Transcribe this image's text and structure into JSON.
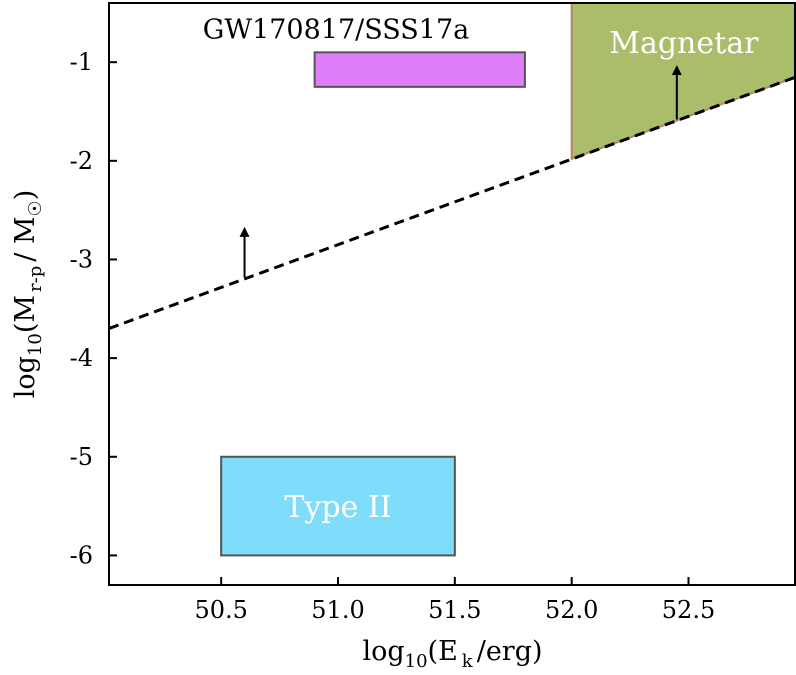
{
  "chart_data": {
    "type": "area",
    "xlabel": {
      "base": "log",
      "sub": "10",
      "open": "(E",
      "sym_sub": "k",
      "close": "/erg)"
    },
    "ylabel": {
      "base": "log",
      "sub": "10",
      "open": "(M",
      "sym_sub": "r-p",
      "mid": "/ M",
      "sun_sub": "☉",
      "close": ")"
    },
    "xlim": [
      50.02,
      52.96
    ],
    "ylim": [
      -6.3,
      -0.4
    ],
    "xticks": [
      {
        "value": 50.5,
        "label": "50.5"
      },
      {
        "value": 51.0,
        "label": "51.0"
      },
      {
        "value": 51.5,
        "label": "51.5"
      },
      {
        "value": 52.0,
        "label": "52.0"
      },
      {
        "value": 52.5,
        "label": "52.5"
      }
    ],
    "yticks": [
      {
        "value": -1,
        "label": "-1"
      },
      {
        "value": -2,
        "label": "-2"
      },
      {
        "value": -3,
        "label": "-3"
      },
      {
        "value": -4,
        "label": "-4"
      },
      {
        "value": -5,
        "label": "-5"
      },
      {
        "value": -6,
        "label": "-6"
      }
    ],
    "limit_line": {
      "x": [
        50.02,
        52.96
      ],
      "y": [
        -3.7,
        -1.15
      ],
      "style": "dashed",
      "color": "#000000"
    },
    "regions": [
      {
        "id": "magnetar",
        "label": "Magnetar",
        "fill": "#a9bd6b",
        "edge": "#b5826a",
        "polygon": [
          [
            52.0,
            -0.4
          ],
          [
            52.96,
            -0.4
          ],
          [
            52.96,
            -1.15
          ],
          [
            52.0,
            -1.98
          ]
        ]
      },
      {
        "id": "type-ii",
        "label": "Type II",
        "fill": "#7fdcfb",
        "edge": "#555555",
        "x": [
          50.5,
          51.5
        ],
        "y": [
          -6.0,
          -5.0
        ]
      },
      {
        "id": "gw170817",
        "label": "",
        "fill": "#e07ef9",
        "edge": "#555555",
        "x": [
          50.9,
          51.8
        ],
        "y": [
          -1.25,
          -0.9
        ]
      }
    ],
    "arrows": [
      {
        "x": 50.6,
        "y_from": -3.18,
        "y_to": -2.72,
        "color": "#000000"
      },
      {
        "x": 52.45,
        "y_from": -1.58,
        "y_to": -1.08,
        "color": "#000000"
      }
    ],
    "annotations": [
      {
        "text": "GW170817/SSS17a",
        "x": 51.0,
        "y": -0.67
      }
    ],
    "grid": false
  }
}
